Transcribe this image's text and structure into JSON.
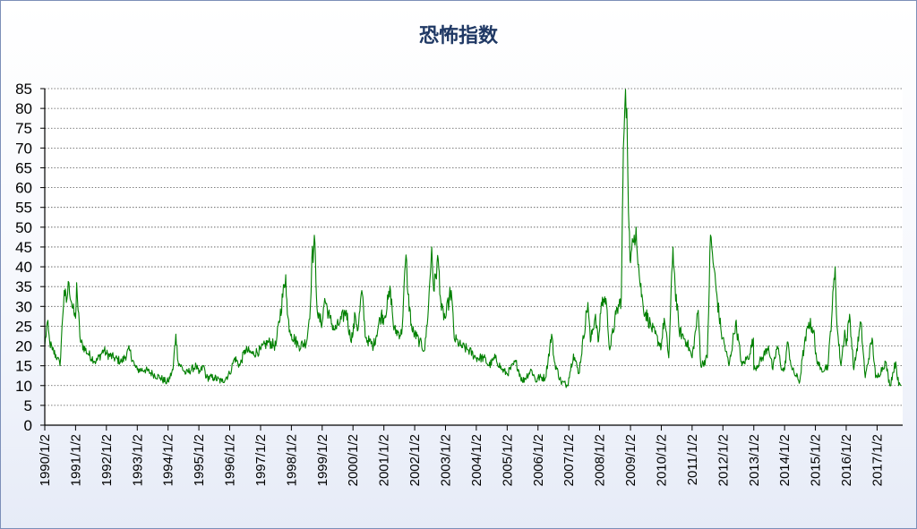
{
  "chart_data": {
    "type": "line",
    "title": "恐怖指数",
    "xlabel": "",
    "ylabel": "",
    "ylim": [
      0,
      85
    ],
    "y_ticks": [
      0,
      5,
      10,
      15,
      20,
      25,
      30,
      35,
      40,
      45,
      50,
      55,
      60,
      65,
      70,
      75,
      80,
      85
    ],
    "x_tick_labels": [
      "1990/1/2",
      "1991/1/2",
      "1992/1/2",
      "1993/1/2",
      "1994/1/2",
      "1995/1/2",
      "1996/1/2",
      "1997/1/2",
      "1998/1/2",
      "1999/1/2",
      "2000/1/2",
      "2001/1/2",
      "2002/1/2",
      "2003/1/2",
      "2004/1/2",
      "2005/1/2",
      "2006/1/2",
      "2007/1/2",
      "2008/1/2",
      "2009/1/2",
      "2010/1/2",
      "2011/1/2",
      "2012/1/2",
      "2013/1/2",
      "2014/1/2",
      "2015/1/2",
      "2016/1/2",
      "2017/1/2"
    ],
    "grid": "horizontal-dotted",
    "line_color": "#008000",
    "series": [
      {
        "name": "",
        "points": [
          [
            "1990/1/2",
            20
          ],
          [
            "1990/2/1",
            26
          ],
          [
            "1990/3/1",
            21
          ],
          [
            "1990/4/1",
            19
          ],
          [
            "1990/6/1",
            17
          ],
          [
            "1990/7/1",
            15
          ],
          [
            "1990/8/1",
            27
          ],
          [
            "1990/8/20",
            34
          ],
          [
            "1990/9/15",
            31
          ],
          [
            "1990/10/15",
            36
          ],
          [
            "1990/11/15",
            31
          ],
          [
            "1990/12/15",
            28
          ],
          [
            "1991/1/2",
            27
          ],
          [
            "1991/1/15",
            36
          ],
          [
            "1991/2/1",
            29
          ],
          [
            "1991/3/1",
            21
          ],
          [
            "1991/6/1",
            18
          ],
          [
            "1991/9/1",
            16
          ],
          [
            "1991/12/1",
            19
          ],
          [
            "1992/1/2",
            18
          ],
          [
            "1992/4/1",
            17
          ],
          [
            "1992/7/1",
            16
          ],
          [
            "1992/10/1",
            19
          ],
          [
            "1992/12/1",
            15
          ],
          [
            "1993/1/2",
            14
          ],
          [
            "1993/4/1",
            14
          ],
          [
            "1993/7/1",
            13
          ],
          [
            "1993/10/1",
            12
          ],
          [
            "1993/12/1",
            11
          ],
          [
            "1994/1/2",
            11
          ],
          [
            "1994/3/1",
            14
          ],
          [
            "1994/4/4",
            23
          ],
          [
            "1994/5/1",
            16
          ],
          [
            "1994/8/1",
            13
          ],
          [
            "1994/12/1",
            15
          ],
          [
            "1995/1/2",
            13
          ],
          [
            "1995/3/1",
            15
          ],
          [
            "1995/4/1",
            12
          ],
          [
            "1995/7/1",
            12
          ],
          [
            "1995/10/1",
            11
          ],
          [
            "1996/1/2",
            13
          ],
          [
            "1996/3/1",
            17
          ],
          [
            "1996/5/1",
            15
          ],
          [
            "1996/7/1",
            19
          ],
          [
            "1996/10/1",
            18
          ],
          [
            "1997/1/2",
            19
          ],
          [
            "1997/4/1",
            21
          ],
          [
            "1997/7/1",
            20
          ],
          [
            "1997/10/27",
            38
          ],
          [
            "1997/11/15",
            28
          ],
          [
            "1997/12/15",
            24
          ],
          [
            "1998/1/2",
            23
          ],
          [
            "1998/4/1",
            20
          ],
          [
            "1998/7/1",
            21
          ],
          [
            "1998/8/15",
            30
          ],
          [
            "1998/9/1",
            42
          ],
          [
            "1998/10/8",
            46
          ],
          [
            "1998/10/20",
            36
          ],
          [
            "1998/11/15",
            27
          ],
          [
            "1999/1/2",
            26
          ],
          [
            "1999/2/1",
            32
          ],
          [
            "1999/4/1",
            27
          ],
          [
            "1999/6/1",
            24
          ],
          [
            "1999/8/1",
            26
          ],
          [
            "1999/10/15",
            29
          ],
          [
            "1999/12/1",
            22
          ],
          [
            "2000/1/2",
            23
          ],
          [
            "2000/1/28",
            28
          ],
          [
            "2000/3/1",
            24
          ],
          [
            "2000/4/15",
            34
          ],
          [
            "2000/6/1",
            22
          ],
          [
            "2000/9/1",
            20
          ],
          [
            "2000/12/1",
            28
          ],
          [
            "2001/1/2",
            27
          ],
          [
            "2001/3/22",
            34
          ],
          [
            "2001/5/1",
            24
          ],
          [
            "2001/8/1",
            23
          ],
          [
            "2001/9/21",
            43
          ],
          [
            "2001/10/15",
            33
          ],
          [
            "2001/12/1",
            24
          ],
          [
            "2002/1/2",
            23
          ],
          [
            "2002/3/1",
            21
          ],
          [
            "2002/5/1",
            19
          ],
          [
            "2002/6/15",
            30
          ],
          [
            "2002/7/23",
            45
          ],
          [
            "2002/8/15",
            34
          ],
          [
            "2002/10/7",
            42
          ],
          [
            "2002/11/15",
            29
          ],
          [
            "2003/1/2",
            27
          ],
          [
            "2003/2/15",
            32
          ],
          [
            "2003/3/11",
            34
          ],
          [
            "2003/4/15",
            22
          ],
          [
            "2003/7/1",
            20
          ],
          [
            "2003/10/1",
            19
          ],
          [
            "2004/1/2",
            17
          ],
          [
            "2004/4/1",
            17
          ],
          [
            "2004/6/1",
            15
          ],
          [
            "2004/8/15",
            17
          ],
          [
            "2004/11/1",
            14
          ],
          [
            "2005/1/2",
            13
          ],
          [
            "2005/4/15",
            16
          ],
          [
            "2005/7/1",
            11
          ],
          [
            "2005/10/15",
            14
          ],
          [
            "2005/12/15",
            11
          ],
          [
            "2006/1/2",
            12
          ],
          [
            "2006/4/1",
            12
          ],
          [
            "2006/6/13",
            23
          ],
          [
            "2006/7/15",
            16
          ],
          [
            "2006/10/1",
            11
          ],
          [
            "2006/12/15",
            10
          ],
          [
            "2007/1/2",
            12
          ],
          [
            "2007/2/27",
            18
          ],
          [
            "2007/5/1",
            13
          ],
          [
            "2007/8/16",
            31
          ],
          [
            "2007/9/15",
            21
          ],
          [
            "2007/11/15",
            28
          ],
          [
            "2007/12/15",
            21
          ],
          [
            "2008/1/2",
            24
          ],
          [
            "2008/1/22",
            31
          ],
          [
            "2008/3/17",
            32
          ],
          [
            "2008/5/1",
            19
          ],
          [
            "2008/7/15",
            28
          ],
          [
            "2008/9/15",
            32
          ],
          [
            "2008/10/10",
            70
          ],
          [
            "2008/10/27",
            80
          ],
          [
            "2008/11/20",
            80
          ],
          [
            "2008/12/15",
            50
          ],
          [
            "2009/1/2",
            41
          ],
          [
            "2009/2/15",
            48
          ],
          [
            "2009/3/9",
            50
          ],
          [
            "2009/4/15",
            38
          ],
          [
            "2009/6/1",
            30
          ],
          [
            "2009/9/1",
            25
          ],
          [
            "2009/12/1",
            21
          ],
          [
            "2010/1/2",
            20
          ],
          [
            "2010/2/5",
            27
          ],
          [
            "2010/4/1",
            17
          ],
          [
            "2010/5/20",
            45
          ],
          [
            "2010/6/15",
            35
          ],
          [
            "2010/8/1",
            24
          ],
          [
            "2010/11/1",
            21
          ],
          [
            "2011/1/2",
            17
          ],
          [
            "2011/3/16",
            29
          ],
          [
            "2011/4/15",
            15
          ],
          [
            "2011/7/1",
            17
          ],
          [
            "2011/8/8",
            48
          ],
          [
            "2011/9/15",
            40
          ],
          [
            "2011/10/15",
            34
          ],
          [
            "2011/12/15",
            23
          ],
          [
            "2012/1/2",
            22
          ],
          [
            "2012/3/15",
            15
          ],
          [
            "2012/6/1",
            26
          ],
          [
            "2012/8/15",
            15
          ],
          [
            "2012/11/15",
            18
          ],
          [
            "2012/12/28",
            22
          ],
          [
            "2013/1/2",
            14
          ],
          [
            "2013/4/15",
            17
          ],
          [
            "2013/6/24",
            20
          ],
          [
            "2013/8/15",
            14
          ],
          [
            "2013/10/8",
            20
          ],
          [
            "2013/12/1",
            14
          ],
          [
            "2014/1/2",
            14
          ],
          [
            "2014/2/3",
            21
          ],
          [
            "2014/4/1",
            14
          ],
          [
            "2014/7/1",
            11
          ],
          [
            "2014/8/1",
            17
          ],
          [
            "2014/10/15",
            26
          ],
          [
            "2014/12/15",
            24
          ],
          [
            "2015/1/2",
            18
          ],
          [
            "2015/3/1",
            14
          ],
          [
            "2015/6/1",
            15
          ],
          [
            "2015/8/24",
            40
          ],
          [
            "2015/9/15",
            25
          ],
          [
            "2015/11/1",
            15
          ],
          [
            "2015/12/15",
            24
          ],
          [
            "2016/1/2",
            20
          ],
          [
            "2016/2/11",
            28
          ],
          [
            "2016/4/1",
            14
          ],
          [
            "2016/6/24",
            26
          ],
          [
            "2016/8/15",
            12
          ],
          [
            "2016/11/4",
            22
          ],
          [
            "2016/12/15",
            12
          ],
          [
            "2017/1/2",
            12
          ],
          [
            "2017/4/13",
            16
          ],
          [
            "2017/6/1",
            10
          ],
          [
            "2017/8/10",
            16
          ],
          [
            "2017/9/15",
            10
          ],
          [
            "2017/10/15",
            10
          ]
        ]
      }
    ]
  }
}
